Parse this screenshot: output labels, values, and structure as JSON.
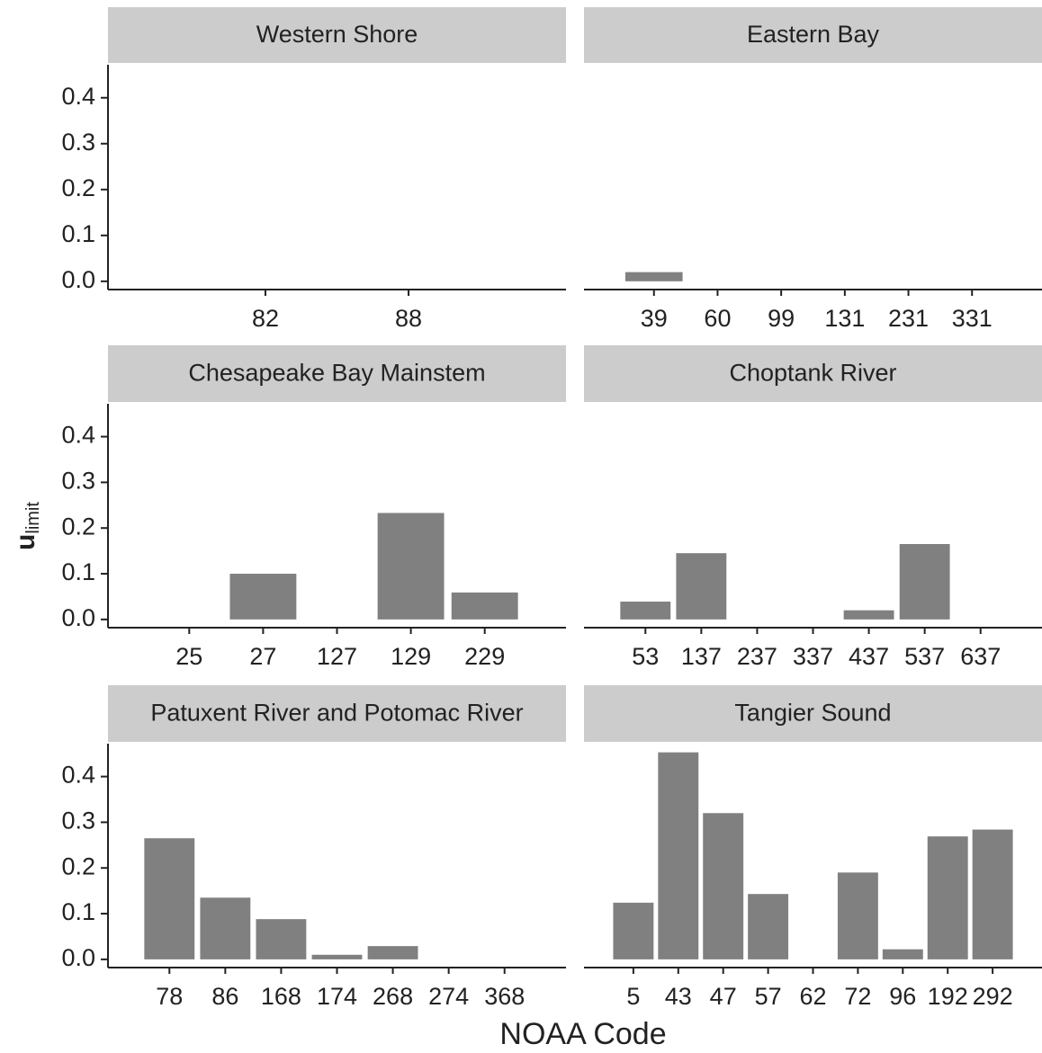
{
  "chart_data": {
    "type": "bar",
    "ylabel": {
      "main": "u",
      "sub": "limit"
    },
    "xlabel": "NOAA Code",
    "ylim": [
      -0.018,
      0.472
    ],
    "yticks": [
      {
        "value": 0,
        "label": "0.0"
      },
      0.1,
      0.2,
      0.3,
      0.4
    ],
    "color": "#808080",
    "panels": [
      {
        "title": "Western Shore",
        "categories": [
          "82",
          "88"
        ],
        "values": [
          0,
          0
        ]
      },
      {
        "title": "Eastern Bay",
        "categories": [
          "39",
          "60",
          "99",
          "131",
          "231",
          "331"
        ],
        "values": [
          0.02,
          0,
          0,
          0,
          0,
          0
        ]
      },
      {
        "title": "Chesapeake Bay Mainstem",
        "categories": [
          "25",
          "27",
          "127",
          "129",
          "229"
        ],
        "values": [
          0,
          0.1,
          0,
          0.233,
          0.059
        ]
      },
      {
        "title": "Choptank River",
        "categories": [
          "53",
          "137",
          "237",
          "337",
          "437",
          "537",
          "637"
        ],
        "values": [
          0.039,
          0.145,
          0,
          0,
          0.02,
          0.165,
          0
        ]
      },
      {
        "title": "Patuxent River and Potomac River",
        "categories": [
          "78",
          "86",
          "168",
          "174",
          "268",
          "274",
          "368"
        ],
        "values": [
          0.265,
          0.135,
          0.088,
          0.01,
          0.029,
          0,
          0
        ]
      },
      {
        "title": "Tangier Sound",
        "categories": [
          "5",
          "43",
          "47",
          "57",
          "62",
          "72",
          "96",
          "192",
          "292"
        ],
        "values": [
          0.124,
          0.453,
          0.32,
          0.143,
          0,
          0.19,
          0.022,
          0.269,
          0.284
        ]
      }
    ]
  }
}
